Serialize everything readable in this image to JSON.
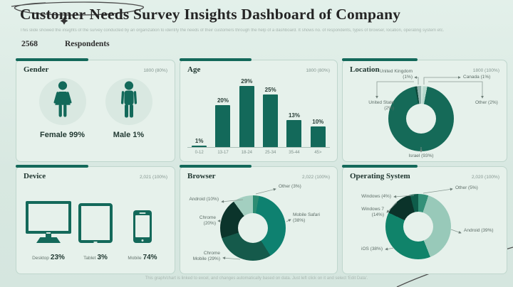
{
  "page": {
    "title": "Customer Needs Survey Insights Dashboard of Company",
    "subtitle": "This slide showed the insights of the survey conducted by an organization to identify the needs of their customers through the help of a dashboard. It shows no. of respondents, types of browser, location, operating system etc.",
    "respondents_count": "2568",
    "respondents_label": "Respondents",
    "footer": "This graph/chart is linked to excel, and changes automatically based on data. Just left click on it and select 'Edit Data'."
  },
  "colors": {
    "accent": "#13695a",
    "page_bg": "#d8e8e1",
    "panel_bg": "#e6f1eb",
    "line_gray": "#8a9a93"
  },
  "panels": {
    "gender": {
      "title": "Gender",
      "total": "1800 (80%)",
      "female": "Female 99%",
      "male": "Male 1%"
    },
    "age": {
      "title": "Age",
      "total": "1800 (80%)"
    },
    "location": {
      "title": "Location",
      "total": "1800 (100%)"
    },
    "device": {
      "title": "Device",
      "total": "2,021 (100%)",
      "items": [
        {
          "name": "Desktop",
          "pct": "23%"
        },
        {
          "name": "Tablet",
          "pct": "3%"
        },
        {
          "name": "Mobile",
          "pct": "74%"
        }
      ]
    },
    "browser": {
      "title": "Browser",
      "total": "2,022 (100%)"
    },
    "os": {
      "title": "Operating System",
      "total": "2,020 (100%)"
    }
  },
  "callouts": {
    "location": [
      "United Kingdom (1%)",
      "Canada (1%)",
      "United State (2%)",
      "Other (2%)",
      "Israel (93%)"
    ],
    "browser": [
      "Android (10%)",
      "Chrome (20%)",
      "Chrome Mobile (29%)",
      "Mobile Safari (38%)",
      "Other (3%)"
    ],
    "os": [
      "Windows (4%)",
      "Windows 7 (14%)",
      "iOS (38%)",
      "Android (39%)",
      "Other (5%)"
    ]
  },
  "chart_data": [
    {
      "id": "gender",
      "type": "pictogram",
      "title": "Gender",
      "categories": [
        "Female",
        "Male"
      ],
      "values": [
        99,
        1
      ],
      "unit": "%"
    },
    {
      "id": "age",
      "type": "bar",
      "title": "Age",
      "categories": [
        "0-12",
        "13-17",
        "18-24",
        "25-34",
        "35-44",
        "45>"
      ],
      "values": [
        1,
        20,
        29,
        25,
        13,
        10
      ],
      "unit": "%",
      "bar_color": "#13695a",
      "ylim": [
        0,
        29
      ],
      "grid": false
    },
    {
      "id": "location",
      "type": "donut",
      "title": "Location",
      "legend_position": "callouts",
      "segments": [
        {
          "label": "Canada",
          "value": 1,
          "color": "#cfe6de"
        },
        {
          "label": "Other",
          "value": 2,
          "color": "#b7d8cd"
        },
        {
          "label": "Israel",
          "value": 93,
          "color": "#156a58"
        },
        {
          "label": "United Kingdom",
          "value": 1,
          "color": "#0d4a3c"
        },
        {
          "label": "United State",
          "value": 2,
          "color": "#8fb0aa"
        }
      ]
    },
    {
      "id": "device",
      "type": "pictogram",
      "title": "Device",
      "categories": [
        "Desktop",
        "Tablet",
        "Mobile"
      ],
      "values": [
        23,
        3,
        74
      ],
      "unit": "%"
    },
    {
      "id": "browser",
      "type": "donut",
      "title": "Browser",
      "legend_position": "callouts",
      "segments": [
        {
          "label": "Other",
          "value": 3,
          "color": "#2c8c72"
        },
        {
          "label": "Mobile Safari",
          "value": 38,
          "color": "#0e8170"
        },
        {
          "label": "Chrome Mobile",
          "value": 29,
          "color": "#155a4b"
        },
        {
          "label": "Chrome",
          "value": 20,
          "color": "#0b342b"
        },
        {
          "label": "Android",
          "value": 10,
          "color": "#a3cfc0"
        }
      ]
    },
    {
      "id": "os",
      "type": "donut",
      "title": "Operating System",
      "legend_position": "callouts",
      "segments": [
        {
          "label": "Other",
          "value": 5,
          "color": "#339078"
        },
        {
          "label": "Android",
          "value": 39,
          "color": "#98c9b9"
        },
        {
          "label": "iOS",
          "value": 38,
          "color": "#10836a"
        },
        {
          "label": "Windows 7",
          "value": 14,
          "color": "#0b332a"
        },
        {
          "label": "Windows",
          "value": 4,
          "color": "#0e5c4a"
        }
      ]
    }
  ]
}
